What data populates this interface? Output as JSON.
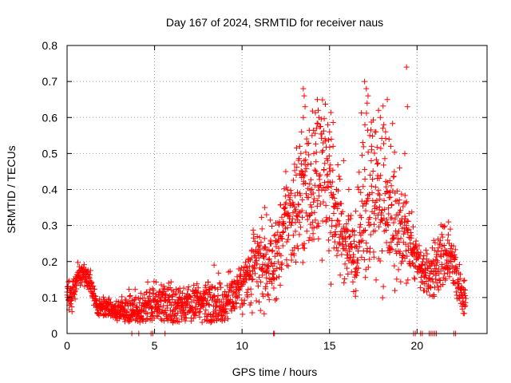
{
  "chart_data": {
    "type": "scatter",
    "title": "Day 167 of 2024, SRMTID for receiver naus",
    "xlabel": "GPS time / hours",
    "ylabel": "SRMTID / TECUs",
    "xlim": [
      0,
      24
    ],
    "ylim": [
      0,
      0.8
    ],
    "x_ticks": [
      0,
      5,
      10,
      15,
      20
    ],
    "x_tick_labels": [
      "0",
      "5",
      "10",
      "15",
      "20"
    ],
    "y_ticks": [
      0,
      0.1,
      0.2,
      0.3,
      0.4,
      0.5,
      0.6,
      0.7,
      0.8
    ],
    "y_tick_labels": [
      "0",
      "0.1",
      "0.2",
      "0.3",
      "0.4",
      "0.5",
      "0.6",
      "0.7",
      "0.8"
    ],
    "grid": true,
    "marker": "+",
    "color": "#ff0000",
    "series": [
      {
        "name": "SRMTID",
        "profile": [
          {
            "x": 0.0,
            "center": 0.11,
            "spread": 0.02
          },
          {
            "x": 0.3,
            "center": 0.1,
            "spread": 0.02
          },
          {
            "x": 0.6,
            "center": 0.16,
            "spread": 0.015
          },
          {
            "x": 1.0,
            "center": 0.17,
            "spread": 0.015
          },
          {
            "x": 1.3,
            "center": 0.14,
            "spread": 0.02
          },
          {
            "x": 1.7,
            "center": 0.08,
            "spread": 0.015
          },
          {
            "x": 2.5,
            "center": 0.065,
            "spread": 0.01
          },
          {
            "x": 3.5,
            "center": 0.06,
            "spread": 0.02
          },
          {
            "x": 5.0,
            "center": 0.08,
            "spread": 0.03
          },
          {
            "x": 6.5,
            "center": 0.08,
            "spread": 0.03
          },
          {
            "x": 7.5,
            "center": 0.085,
            "spread": 0.02
          },
          {
            "x": 8.2,
            "center": 0.09,
            "spread": 0.05
          },
          {
            "x": 9.0,
            "center": 0.08,
            "spread": 0.03
          },
          {
            "x": 9.8,
            "center": 0.13,
            "spread": 0.03
          },
          {
            "x": 10.5,
            "center": 0.15,
            "spread": 0.05
          },
          {
            "x": 11.0,
            "center": 0.2,
            "spread": 0.07
          },
          {
            "x": 11.5,
            "center": 0.18,
            "spread": 0.05
          },
          {
            "x": 12.0,
            "center": 0.22,
            "spread": 0.05
          },
          {
            "x": 12.5,
            "center": 0.3,
            "spread": 0.07
          },
          {
            "x": 13.0,
            "center": 0.35,
            "spread": 0.08
          },
          {
            "x": 13.5,
            "center": 0.38,
            "spread": 0.1
          },
          {
            "x": 14.0,
            "center": 0.42,
            "spread": 0.09
          },
          {
            "x": 14.5,
            "center": 0.45,
            "spread": 0.1
          },
          {
            "x": 15.0,
            "center": 0.42,
            "spread": 0.1
          },
          {
            "x": 15.5,
            "center": 0.3,
            "spread": 0.07
          },
          {
            "x": 16.0,
            "center": 0.25,
            "spread": 0.05
          },
          {
            "x": 16.5,
            "center": 0.22,
            "spread": 0.05
          },
          {
            "x": 17.0,
            "center": 0.4,
            "spread": 0.12
          },
          {
            "x": 17.5,
            "center": 0.38,
            "spread": 0.12
          },
          {
            "x": 18.0,
            "center": 0.4,
            "spread": 0.12
          },
          {
            "x": 18.5,
            "center": 0.3,
            "spread": 0.1
          },
          {
            "x": 19.0,
            "center": 0.25,
            "spread": 0.08
          },
          {
            "x": 19.5,
            "center": 0.28,
            "spread": 0.05
          },
          {
            "x": 20.0,
            "center": 0.2,
            "spread": 0.03
          },
          {
            "x": 20.5,
            "center": 0.16,
            "spread": 0.03
          },
          {
            "x": 21.0,
            "center": 0.18,
            "spread": 0.04
          },
          {
            "x": 21.5,
            "center": 0.22,
            "spread": 0.05
          },
          {
            "x": 22.0,
            "center": 0.2,
            "spread": 0.04
          },
          {
            "x": 22.5,
            "center": 0.11,
            "spread": 0.03
          },
          {
            "x": 22.8,
            "center": 0.1,
            "spread": 0.02
          }
        ],
        "peaks": [
          {
            "x": 13.5,
            "y": 0.68
          },
          {
            "x": 13.55,
            "y": 0.66
          },
          {
            "x": 13.6,
            "y": 0.63
          },
          {
            "x": 13.5,
            "y": 0.6
          },
          {
            "x": 13.4,
            "y": 0.56
          },
          {
            "x": 13.3,
            "y": 0.52
          },
          {
            "x": 14.3,
            "y": 0.65
          },
          {
            "x": 14.35,
            "y": 0.62
          },
          {
            "x": 14.4,
            "y": 0.6
          },
          {
            "x": 14.9,
            "y": 0.58
          },
          {
            "x": 15.0,
            "y": 0.56
          },
          {
            "x": 15.1,
            "y": 0.54
          },
          {
            "x": 15.2,
            "y": 0.52
          },
          {
            "x": 14.0,
            "y": 0.55
          },
          {
            "x": 14.1,
            "y": 0.5
          },
          {
            "x": 17.0,
            "y": 0.7
          },
          {
            "x": 17.1,
            "y": 0.68
          },
          {
            "x": 17.2,
            "y": 0.66
          },
          {
            "x": 17.15,
            "y": 0.64
          },
          {
            "x": 17.3,
            "y": 0.55
          },
          {
            "x": 17.4,
            "y": 0.52
          },
          {
            "x": 17.6,
            "y": 0.56
          },
          {
            "x": 17.8,
            "y": 0.62
          },
          {
            "x": 17.9,
            "y": 0.6
          },
          {
            "x": 18.1,
            "y": 0.58
          },
          {
            "x": 18.2,
            "y": 0.56
          },
          {
            "x": 18.3,
            "y": 0.65
          },
          {
            "x": 18.4,
            "y": 0.54
          },
          {
            "x": 18.5,
            "y": 0.52
          },
          {
            "x": 19.4,
            "y": 0.74
          },
          {
            "x": 19.45,
            "y": 0.63
          },
          {
            "x": 19.3,
            "y": 0.5
          },
          {
            "x": 12.5,
            "y": 0.45
          },
          {
            "x": 13.0,
            "y": 0.47
          },
          {
            "x": 15.8,
            "y": 0.48
          },
          {
            "x": 16.1,
            "y": 0.4
          },
          {
            "x": 16.5,
            "y": 0.34
          },
          {
            "x": 19.0,
            "y": 0.46
          },
          {
            "x": 11.3,
            "y": 0.35
          },
          {
            "x": 11.4,
            "y": 0.33
          },
          {
            "x": 8.4,
            "y": 0.19
          },
          {
            "x": 21.8,
            "y": 0.31
          },
          {
            "x": 21.9,
            "y": 0.29
          }
        ],
        "zeros_x": [
          3.7,
          4.1,
          4.8,
          4.9,
          5.6,
          11.8,
          11.85,
          19.8,
          19.9,
          20.2,
          20.3,
          20.7,
          20.8,
          20.9,
          21.0,
          21.1,
          22.1,
          22.2
        ]
      }
    ]
  }
}
